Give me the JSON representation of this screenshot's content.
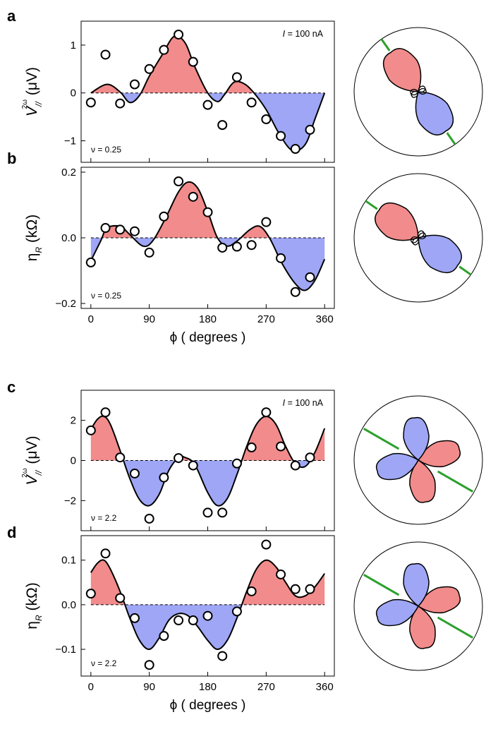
{
  "colors": {
    "positive": "#f28b8b",
    "negative": "#9ea6f5",
    "axis_line": "#2ca02c"
  },
  "x_ticks": [
    "0",
    "90",
    "180",
    "270",
    "360"
  ],
  "x_label_symbol": "ϕ",
  "x_label_text": "( degrees )",
  "chart_data": [
    {
      "panel": "a",
      "type": "scatter",
      "ylabel_sym": "V",
      "ylabel_sub": "//",
      "ylabel_sup": "2ω",
      "ylabel_unit": "(μV)",
      "annotation": "ν = 0.25",
      "current_sym": "I",
      "current_val": "= 100 nA",
      "xlim": [
        -15,
        375
      ],
      "ylim": [
        -1.45,
        1.5
      ],
      "yticks": [
        1,
        0,
        -1
      ],
      "ytick_labels": [
        "1",
        "0",
        "−1"
      ],
      "x": [
        0,
        22.5,
        45,
        67.5,
        90,
        112.5,
        135,
        157.5,
        180,
        202.5,
        225,
        247.5,
        270,
        292.5,
        315,
        337.5
      ],
      "y": [
        -0.2,
        0.8,
        -0.22,
        0.18,
        0.5,
        0.9,
        1.22,
        0.65,
        -0.25,
        -0.67,
        0.33,
        -0.2,
        -0.55,
        -0.9,
        -1.17,
        -0.77
      ],
      "fit": [
        [
          0,
          0
        ],
        [
          25,
          0.18
        ],
        [
          45,
          0.02
        ],
        [
          60,
          -0.2
        ],
        [
          75,
          -0.05
        ],
        [
          90,
          0.35
        ],
        [
          110,
          0.8
        ],
        [
          128,
          1.18
        ],
        [
          145,
          1.05
        ],
        [
          160,
          0.55
        ],
        [
          180,
          0.0
        ],
        [
          195,
          -0.18
        ],
        [
          205,
          -0.05
        ],
        [
          220,
          0.22
        ],
        [
          235,
          0.2
        ],
        [
          250,
          0.02
        ],
        [
          270,
          -0.35
        ],
        [
          290,
          -0.85
        ],
        [
          310,
          -1.2
        ],
        [
          330,
          -1.08
        ],
        [
          345,
          -0.55
        ],
        [
          360,
          0.0
        ]
      ],
      "polar": {
        "pos_angle": 125,
        "neg_angle": 305,
        "line_angle": 125
      }
    },
    {
      "panel": "b",
      "type": "scatter",
      "ylabel_sym": "η",
      "ylabel_sub": "R",
      "ylabel_unit": "(kΩ)",
      "annotation": "ν = 0.25",
      "xlim": [
        -15,
        375
      ],
      "ylim": [
        -0.215,
        0.215
      ],
      "yticks": [
        0.2,
        0.0,
        -0.2
      ],
      "ytick_labels": [
        "0.2",
        "0.0",
        "−0.2"
      ],
      "x": [
        0,
        22.5,
        45,
        67.5,
        90,
        112.5,
        135,
        157.5,
        180,
        202.5,
        225,
        247.5,
        270,
        292.5,
        315,
        337.5
      ],
      "y": [
        -0.075,
        0.03,
        0.025,
        0.02,
        -0.045,
        0.065,
        0.172,
        0.125,
        0.078,
        -0.03,
        -0.027,
        -0.022,
        0.048,
        -0.062,
        -0.165,
        -0.12
      ],
      "fit": [
        [
          0,
          -0.07
        ],
        [
          15,
          -0.01
        ],
        [
          25,
          0.03
        ],
        [
          45,
          0.035
        ],
        [
          60,
          0.01
        ],
        [
          80,
          -0.025
        ],
        [
          95,
          -0.01
        ],
        [
          115,
          0.06
        ],
        [
          135,
          0.14
        ],
        [
          150,
          0.17
        ],
        [
          165,
          0.15
        ],
        [
          180,
          0.08
        ],
        [
          195,
          0.0
        ],
        [
          210,
          -0.025
        ],
        [
          225,
          -0.01
        ],
        [
          245,
          0.025
        ],
        [
          260,
          0.035
        ],
        [
          275,
          0.0
        ],
        [
          295,
          -0.08
        ],
        [
          315,
          -0.14
        ],
        [
          330,
          -0.16
        ],
        [
          345,
          -0.13
        ],
        [
          360,
          -0.065
        ]
      ],
      "polar": {
        "pos_angle": 145,
        "neg_angle": 325,
        "line_angle": 145
      }
    },
    {
      "panel": "c",
      "type": "scatter",
      "ylabel_sym": "V",
      "ylabel_sub": "//",
      "ylabel_sup": "2ω",
      "ylabel_unit": "(μV)",
      "annotation": "ν = 2.2",
      "current_sym": "I",
      "current_val": "= 100 nA",
      "xlim": [
        -15,
        375
      ],
      "ylim": [
        -3.5,
        3.5
      ],
      "yticks": [
        2,
        0,
        -2
      ],
      "ytick_labels": [
        "2",
        "0",
        "−2"
      ],
      "x": [
        0,
        22.5,
        45,
        67.5,
        90,
        112.5,
        135,
        157.5,
        180,
        202.5,
        225,
        247.5,
        270,
        292.5,
        315,
        337.5
      ],
      "y": [
        1.5,
        2.4,
        0.15,
        -0.65,
        -2.9,
        -0.85,
        0.12,
        -0.25,
        -2.6,
        -2.6,
        -0.15,
        0.65,
        2.4,
        0.7,
        -0.25,
        0.15
      ],
      "fit": [
        [
          0,
          1.55
        ],
        [
          10,
          2.05
        ],
        [
          20,
          2.2
        ],
        [
          30,
          1.8
        ],
        [
          45,
          0.5
        ],
        [
          60,
          -0.9
        ],
        [
          75,
          -1.95
        ],
        [
          90,
          -2.25
        ],
        [
          105,
          -1.7
        ],
        [
          120,
          -0.5
        ],
        [
          135,
          0.15
        ],
        [
          145,
          0.15
        ],
        [
          160,
          -0.2
        ],
        [
          180,
          -1.6
        ],
        [
          195,
          -2.25
        ],
        [
          210,
          -1.9
        ],
        [
          225,
          -0.7
        ],
        [
          240,
          0.7
        ],
        [
          255,
          1.8
        ],
        [
          270,
          2.2
        ],
        [
          285,
          1.8
        ],
        [
          300,
          0.7
        ],
        [
          315,
          -0.15
        ],
        [
          330,
          -0.3
        ],
        [
          345,
          0.4
        ],
        [
          360,
          1.6
        ]
      ],
      "polar": {
        "quad": true,
        "line_angle": 150
      }
    },
    {
      "panel": "d",
      "type": "scatter",
      "ylabel_sym": "η",
      "ylabel_sub": "R",
      "ylabel_unit": "(kΩ)",
      "annotation": "ν = 2.2",
      "xlim": [
        -15,
        375
      ],
      "ylim": [
        -0.16,
        0.155
      ],
      "yticks": [
        0.1,
        0.0,
        -0.1
      ],
      "ytick_labels": [
        "0.1",
        "0.0",
        "−0.1"
      ],
      "x": [
        0,
        22.5,
        45,
        67.5,
        90,
        112.5,
        135,
        157.5,
        180,
        202.5,
        225,
        247.5,
        270,
        292.5,
        315,
        337.5
      ],
      "y": [
        0.025,
        0.115,
        0.015,
        -0.03,
        -0.135,
        -0.07,
        -0.035,
        -0.035,
        -0.025,
        -0.115,
        -0.015,
        0.03,
        0.135,
        0.068,
        0.035,
        0.035
      ],
      "fit": [
        [
          0,
          0.072
        ],
        [
          10,
          0.093
        ],
        [
          20,
          0.1
        ],
        [
          30,
          0.08
        ],
        [
          45,
          0.03
        ],
        [
          60,
          -0.03
        ],
        [
          75,
          -0.08
        ],
        [
          90,
          -0.1
        ],
        [
          105,
          -0.075
        ],
        [
          120,
          -0.035
        ],
        [
          135,
          -0.02
        ],
        [
          150,
          -0.025
        ],
        [
          165,
          -0.05
        ],
        [
          180,
          -0.08
        ],
        [
          195,
          -0.1
        ],
        [
          210,
          -0.08
        ],
        [
          225,
          -0.03
        ],
        [
          240,
          0.03
        ],
        [
          255,
          0.08
        ],
        [
          270,
          0.1
        ],
        [
          285,
          0.085
        ],
        [
          300,
          0.05
        ],
        [
          315,
          0.02
        ],
        [
          330,
          0.02
        ],
        [
          345,
          0.04
        ],
        [
          360,
          0.07
        ]
      ],
      "polar": {
        "quad": true,
        "line_angle": 150
      }
    }
  ]
}
